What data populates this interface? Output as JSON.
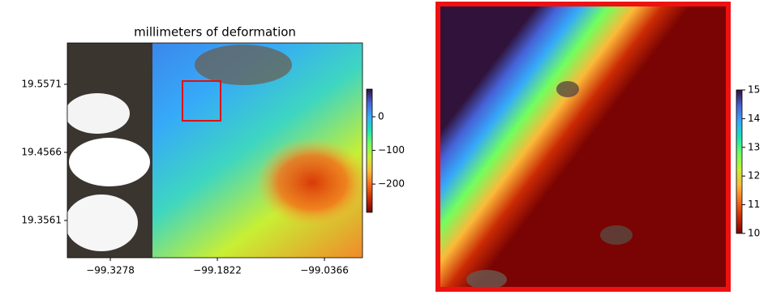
{
  "chart_data": [
    {
      "type": "heatmap",
      "title": "millimeters of deformation",
      "xlim": [
        -99.3863,
        -98.9848
      ],
      "xticks": [
        {
          "value": -99.3278,
          "label": "−99.3278"
        },
        {
          "value": -99.1822,
          "label": "−99.1822"
        },
        {
          "value": -99.0366,
          "label": "−99.0366"
        }
      ],
      "ylim": [
        19.3011,
        19.6181
      ],
      "yticks": [
        19.5571,
        19.4566,
        19.3561
      ],
      "clim": [
        -284,
        82
      ],
      "cticks": [
        0,
        {
          "value": -100,
          "label": "−100"
        },
        {
          "value": -200,
          "label": "−200"
        }
      ],
      "colors": [
        "#7a0403",
        "#ca2a04",
        "#f66b19",
        "#faba39",
        "#c8ef34",
        "#72fe5e",
        "#1ae4b6",
        "#36aaf9",
        "#4662d7",
        "#30123b"
      ]
    },
    {
      "type": "heatmap",
      "clim": [
        10,
        15
      ],
      "cticks": [
        10,
        11,
        12,
        13,
        14,
        15
      ],
      "colors": [
        "#7a0403",
        "#ca2a04",
        "#f66b19",
        "#faba39",
        "#c8ef34",
        "#72fe5e",
        "#1ae4b6",
        "#36aaf9",
        "#4662d7",
        "#30123b"
      ]
    }
  ]
}
